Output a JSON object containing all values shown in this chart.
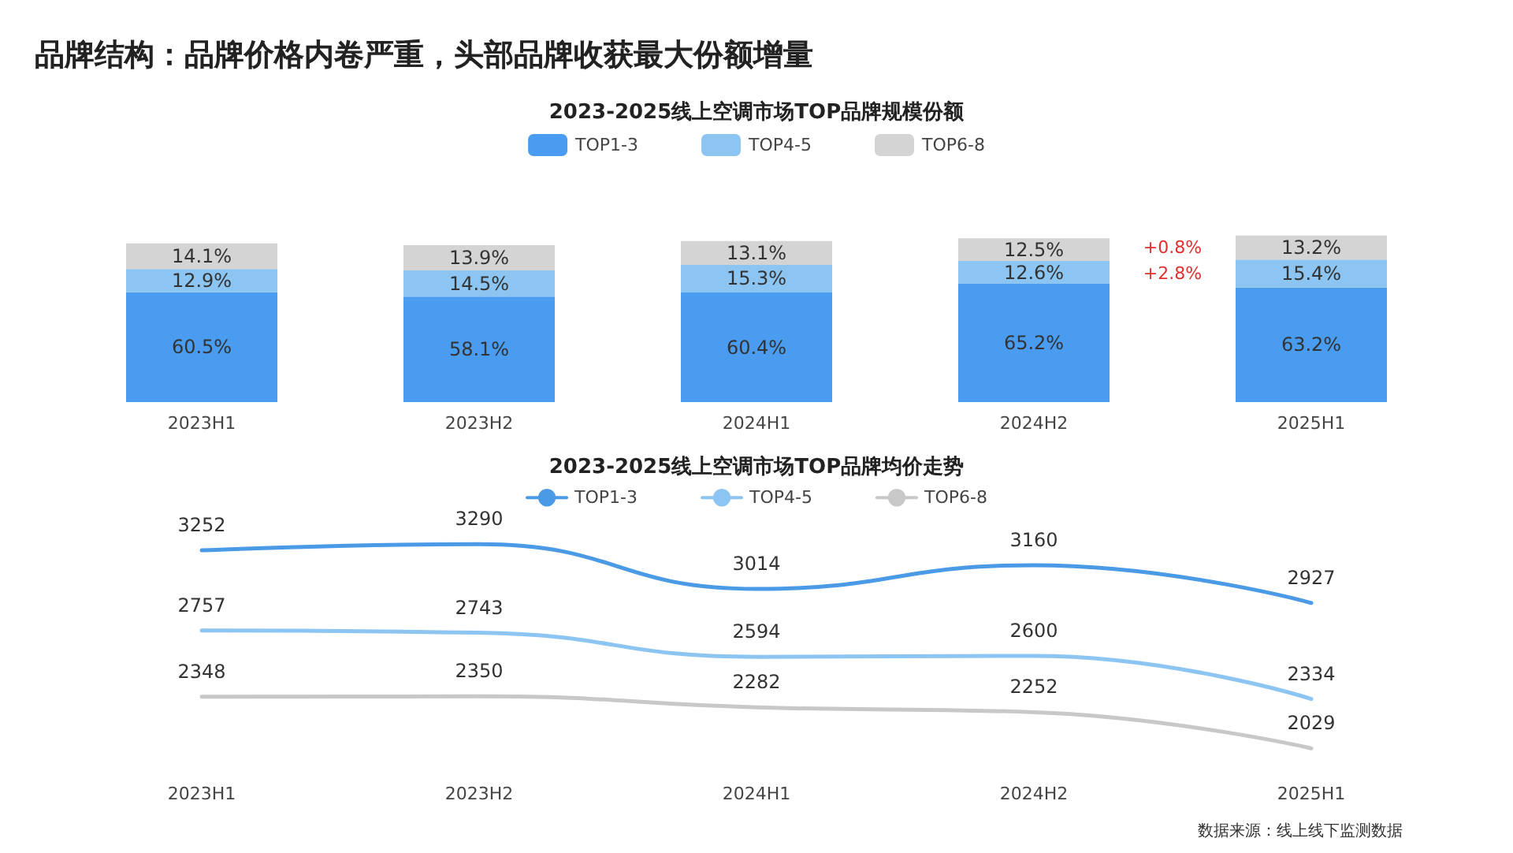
{
  "chart_data": [
    {
      "type": "bar",
      "title": "品牌结构：品牌价格内卷严重，头部品牌收获最大份额增量",
      "subtitle": "2023-2025线上空调市场TOP品牌规模份额",
      "categories": [
        "2023H1",
        "2023H2",
        "2024H1",
        "2024H2",
        "2025H1"
      ],
      "stacked": true,
      "legend": "top",
      "series": [
        {
          "name": "TOP1-3",
          "color": "#4a9cf0",
          "values": [
            60.5,
            58.1,
            60.4,
            65.2,
            63.2
          ],
          "value_labels": [
            "60.5%",
            "58.1%",
            "60.4%",
            "65.2%",
            "63.2%"
          ]
        },
        {
          "name": "TOP4-5",
          "color": "#8cc4f2",
          "values": [
            12.9,
            14.5,
            15.3,
            12.6,
            15.4
          ],
          "value_labels": [
            "12.9%",
            "14.5%",
            "15.3%",
            "12.6%",
            "15.4%"
          ]
        },
        {
          "name": "TOP6-8",
          "color": "#d4d4d4",
          "values": [
            14.1,
            13.9,
            13.1,
            12.5,
            13.2
          ],
          "value_labels": [
            "14.1%",
            "13.9%",
            "13.1%",
            "12.5%",
            "13.2%"
          ]
        }
      ],
      "annotations": [
        "+0.8%",
        "+2.8%"
      ]
    },
    {
      "type": "line",
      "title": "2023-2025线上空调市场TOP品牌均价走势",
      "categories": [
        "2023H1",
        "2023H2",
        "2024H1",
        "2024H2",
        "2025H1"
      ],
      "legend": "top",
      "marker": "none",
      "data_labels": true,
      "series": [
        {
          "name": "TOP1-3",
          "color": "#4a9ae6",
          "values": [
            3252,
            3290,
            3014,
            3160,
            2927
          ]
        },
        {
          "name": "TOP4-5",
          "color": "#8cc4f2",
          "values": [
            2757,
            2743,
            2594,
            2600,
            2334
          ]
        },
        {
          "name": "TOP6-8",
          "color": "#c8c8c8",
          "values": [
            2348,
            2350,
            2282,
            2252,
            2029
          ]
        }
      ],
      "annotations": [
        "数据来源：线上线下监测数据"
      ]
    }
  ]
}
